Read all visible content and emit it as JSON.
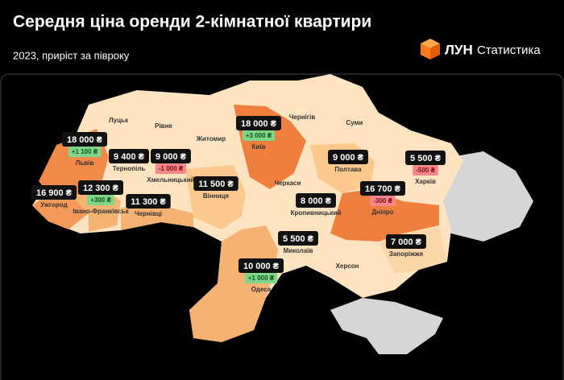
{
  "header": {
    "title": "Середня ціна оренди 2-кімнатної квартири",
    "subtitle": "2023, приріст за півроку",
    "brand": "ЛУН",
    "brand_section": "Статистика"
  },
  "cities": [
    {
      "name": "Львів",
      "price": "18 000 ₴",
      "change": "+1 100 ₴"
    },
    {
      "name": "Ужгород",
      "price": "16 900 ₴"
    },
    {
      "name": "Тернопіль",
      "price": "9 400 ₴"
    },
    {
      "name": "Хмельницький",
      "price": "9 000 ₴",
      "change": "-1 000 ₴"
    },
    {
      "name": "Івано-Франківськ",
      "price": "12 300 ₴",
      "change": "+300 ₴"
    },
    {
      "name": "Чернівці",
      "price": "11 300 ₴"
    },
    {
      "name": "Вінниця",
      "price": "11 500 ₴"
    },
    {
      "name": "Київ",
      "price": "18 000 ₴",
      "change": "+3 000 ₴"
    },
    {
      "name": "Полтава",
      "price": "9 000 ₴"
    },
    {
      "name": "Харків",
      "price": "5 500 ₴",
      "change": "-500 ₴"
    },
    {
      "name": "Дніпро",
      "price": "16 700 ₴",
      "change": "-300 ₴"
    },
    {
      "name": "Кропивницький",
      "price": "8 000 ₴"
    },
    {
      "name": "Миколаїв",
      "price": "5 500 ₴"
    },
    {
      "name": "Запоріжжя",
      "price": "7 000 ₴"
    },
    {
      "name": "Одеса",
      "price": "10 000 ₴",
      "change": "+1 000 ₴"
    }
  ],
  "region_labels": [
    "Луцьк",
    "Рівне",
    "Житомир",
    "Чернігів",
    "Суми",
    "Черкаси",
    "Херсон"
  ]
}
